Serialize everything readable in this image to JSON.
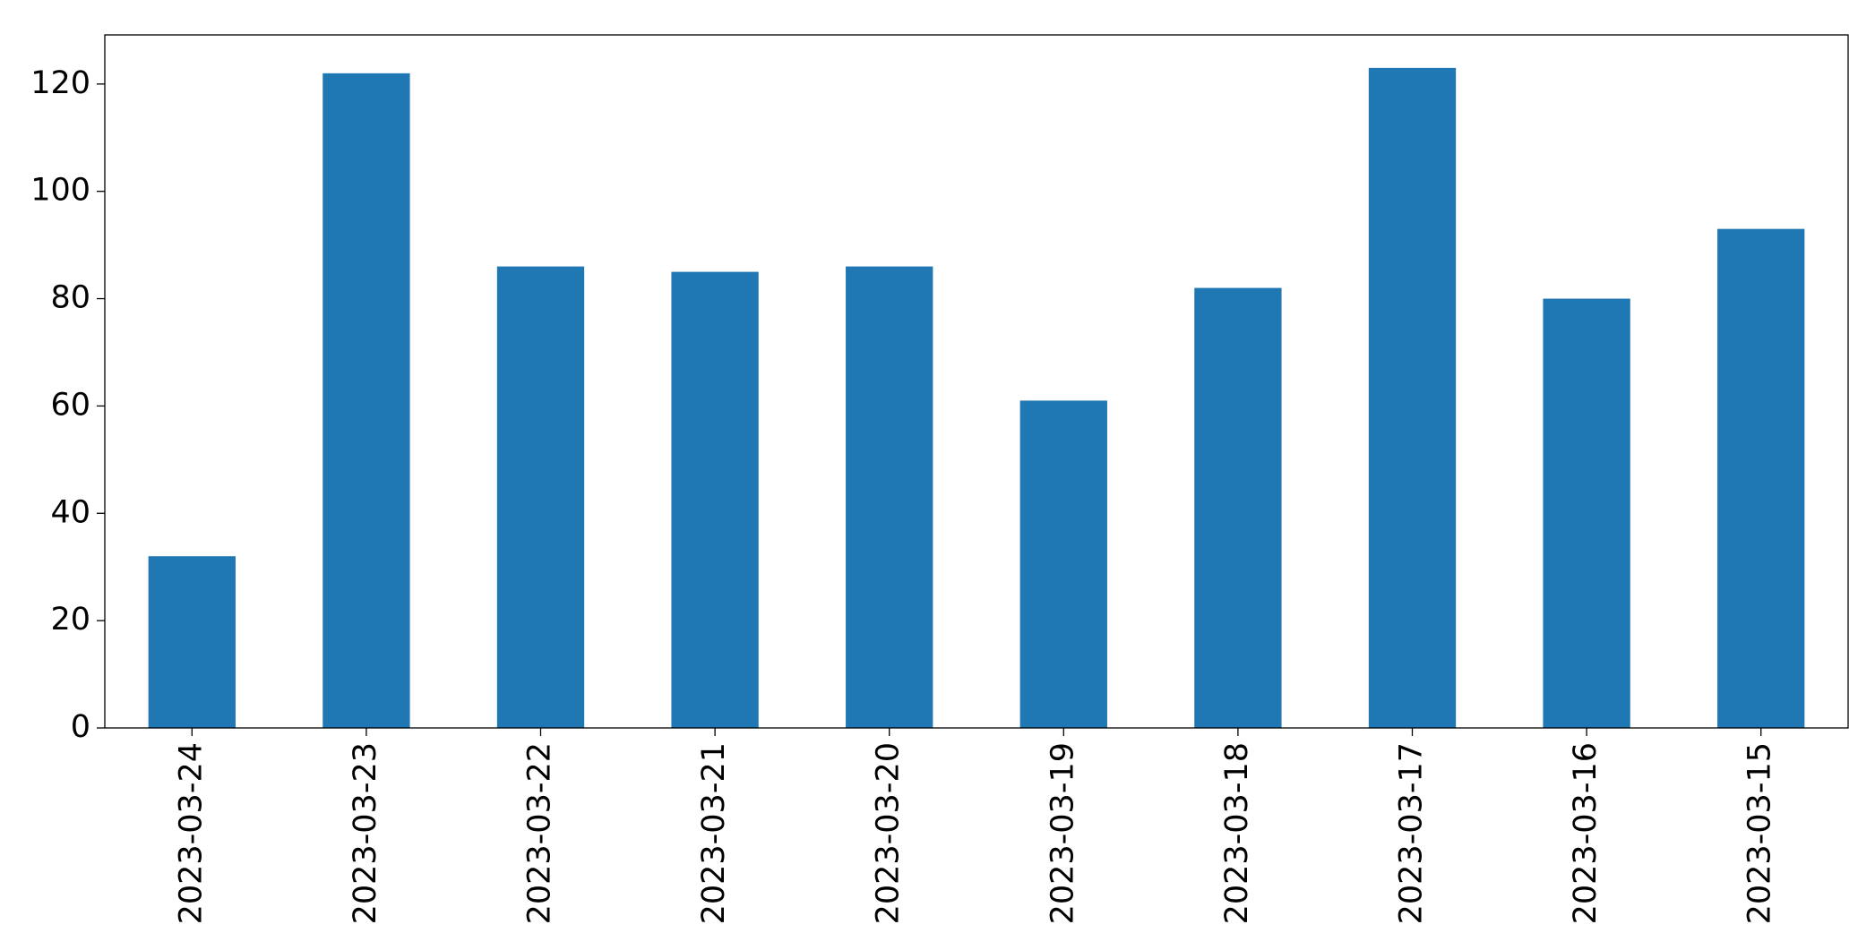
{
  "chart_data": {
    "type": "bar",
    "categories": [
      "2023-03-24",
      "2023-03-23",
      "2023-03-22",
      "2023-03-21",
      "2023-03-20",
      "2023-03-19",
      "2023-03-18",
      "2023-03-17",
      "2023-03-16",
      "2023-03-15"
    ],
    "values": [
      32,
      122,
      86,
      85,
      86,
      61,
      82,
      123,
      80,
      93
    ],
    "color": "#1f77b4",
    "ylim": [
      0,
      129.15
    ],
    "yticks": [
      0,
      20,
      40,
      60,
      80,
      100,
      120
    ],
    "grid": false
  }
}
